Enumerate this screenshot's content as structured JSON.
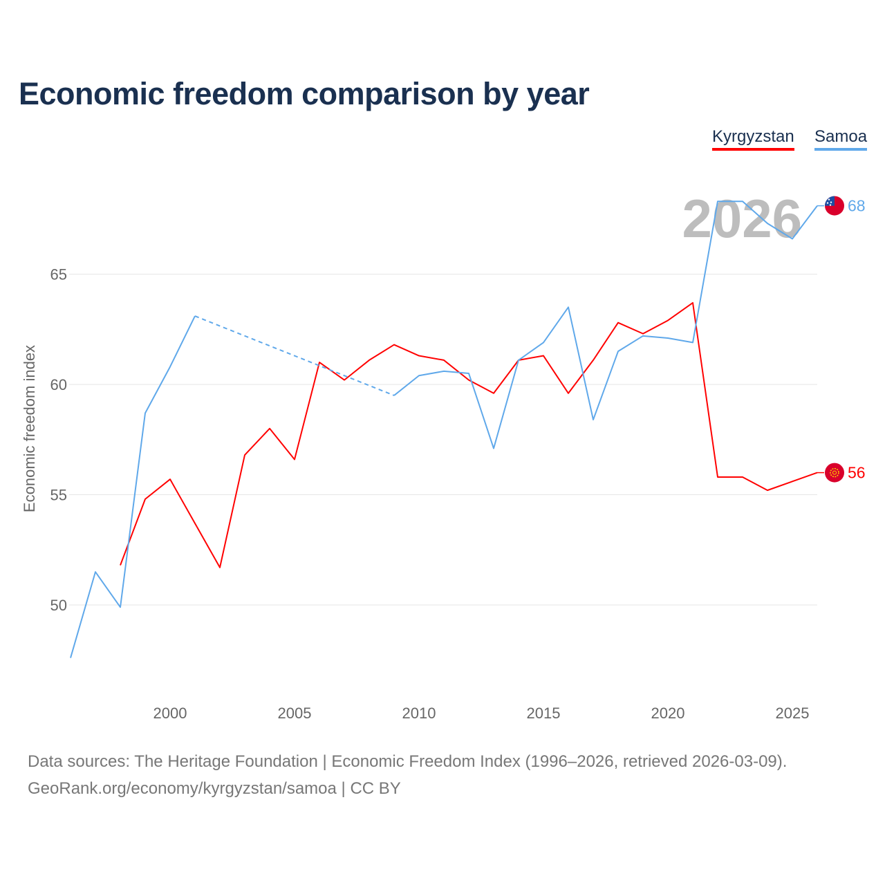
{
  "chart_data": {
    "type": "line",
    "title": "Economic freedom comparison by year",
    "ylabel": "Economic freedom index",
    "xlabel": "",
    "xlim": [
      1996,
      2026
    ],
    "ylim": [
      45.5,
      70.5
    ],
    "xticks": [
      2000,
      2005,
      2010,
      2015,
      2020,
      2025
    ],
    "yticks": [
      50,
      55,
      60,
      65
    ],
    "grid": true,
    "legend_position": "top-right",
    "year_watermark": "2026",
    "series": [
      {
        "name": "Kyrgyzstan",
        "color": "#ff0000",
        "end_label": "56",
        "flag": "kyrgyzstan-flag",
        "x": [
          1998,
          1999,
          2000,
          2001,
          2002,
          2003,
          2004,
          2005,
          2006,
          2007,
          2008,
          2009,
          2010,
          2011,
          2012,
          2013,
          2014,
          2015,
          2016,
          2017,
          2018,
          2019,
          2020,
          2021,
          2022,
          2023,
          2024,
          2025,
          2026
        ],
        "y": [
          51.8,
          54.8,
          55.7,
          53.7,
          51.7,
          56.8,
          58.0,
          56.6,
          61.0,
          60.2,
          61.1,
          61.8,
          61.3,
          61.1,
          60.2,
          59.6,
          61.1,
          61.3,
          59.6,
          61.1,
          62.8,
          62.3,
          62.9,
          63.7,
          55.8,
          55.8,
          55.2,
          55.6,
          56.0
        ]
      },
      {
        "name": "Samoa",
        "color": "#5fa8ea",
        "end_label": "68",
        "flag": "samoa-flag",
        "x": [
          1996,
          1997,
          1998,
          1999,
          2000,
          2001,
          2009,
          2010,
          2011,
          2012,
          2013,
          2014,
          2015,
          2016,
          2017,
          2018,
          2019,
          2020,
          2021,
          2022,
          2023,
          2024,
          2025,
          2026
        ],
        "y": [
          47.6,
          51.5,
          49.9,
          58.7,
          60.8,
          63.1,
          59.5,
          60.4,
          60.6,
          60.5,
          57.1,
          61.1,
          61.9,
          63.5,
          58.4,
          61.5,
          62.2,
          62.1,
          61.9,
          68.3,
          68.3,
          67.3,
          66.6,
          68.1
        ],
        "dashed_gaps": [
          [
            2001,
            2009
          ]
        ]
      }
    ]
  },
  "footer": {
    "line1": "Data sources: The Heritage Foundation | Economic Freedom Index (1996–2026, retrieved 2026-03-09).",
    "line2": "GeoRank.org/economy/kyrgyzstan/samoa | CC BY"
  }
}
